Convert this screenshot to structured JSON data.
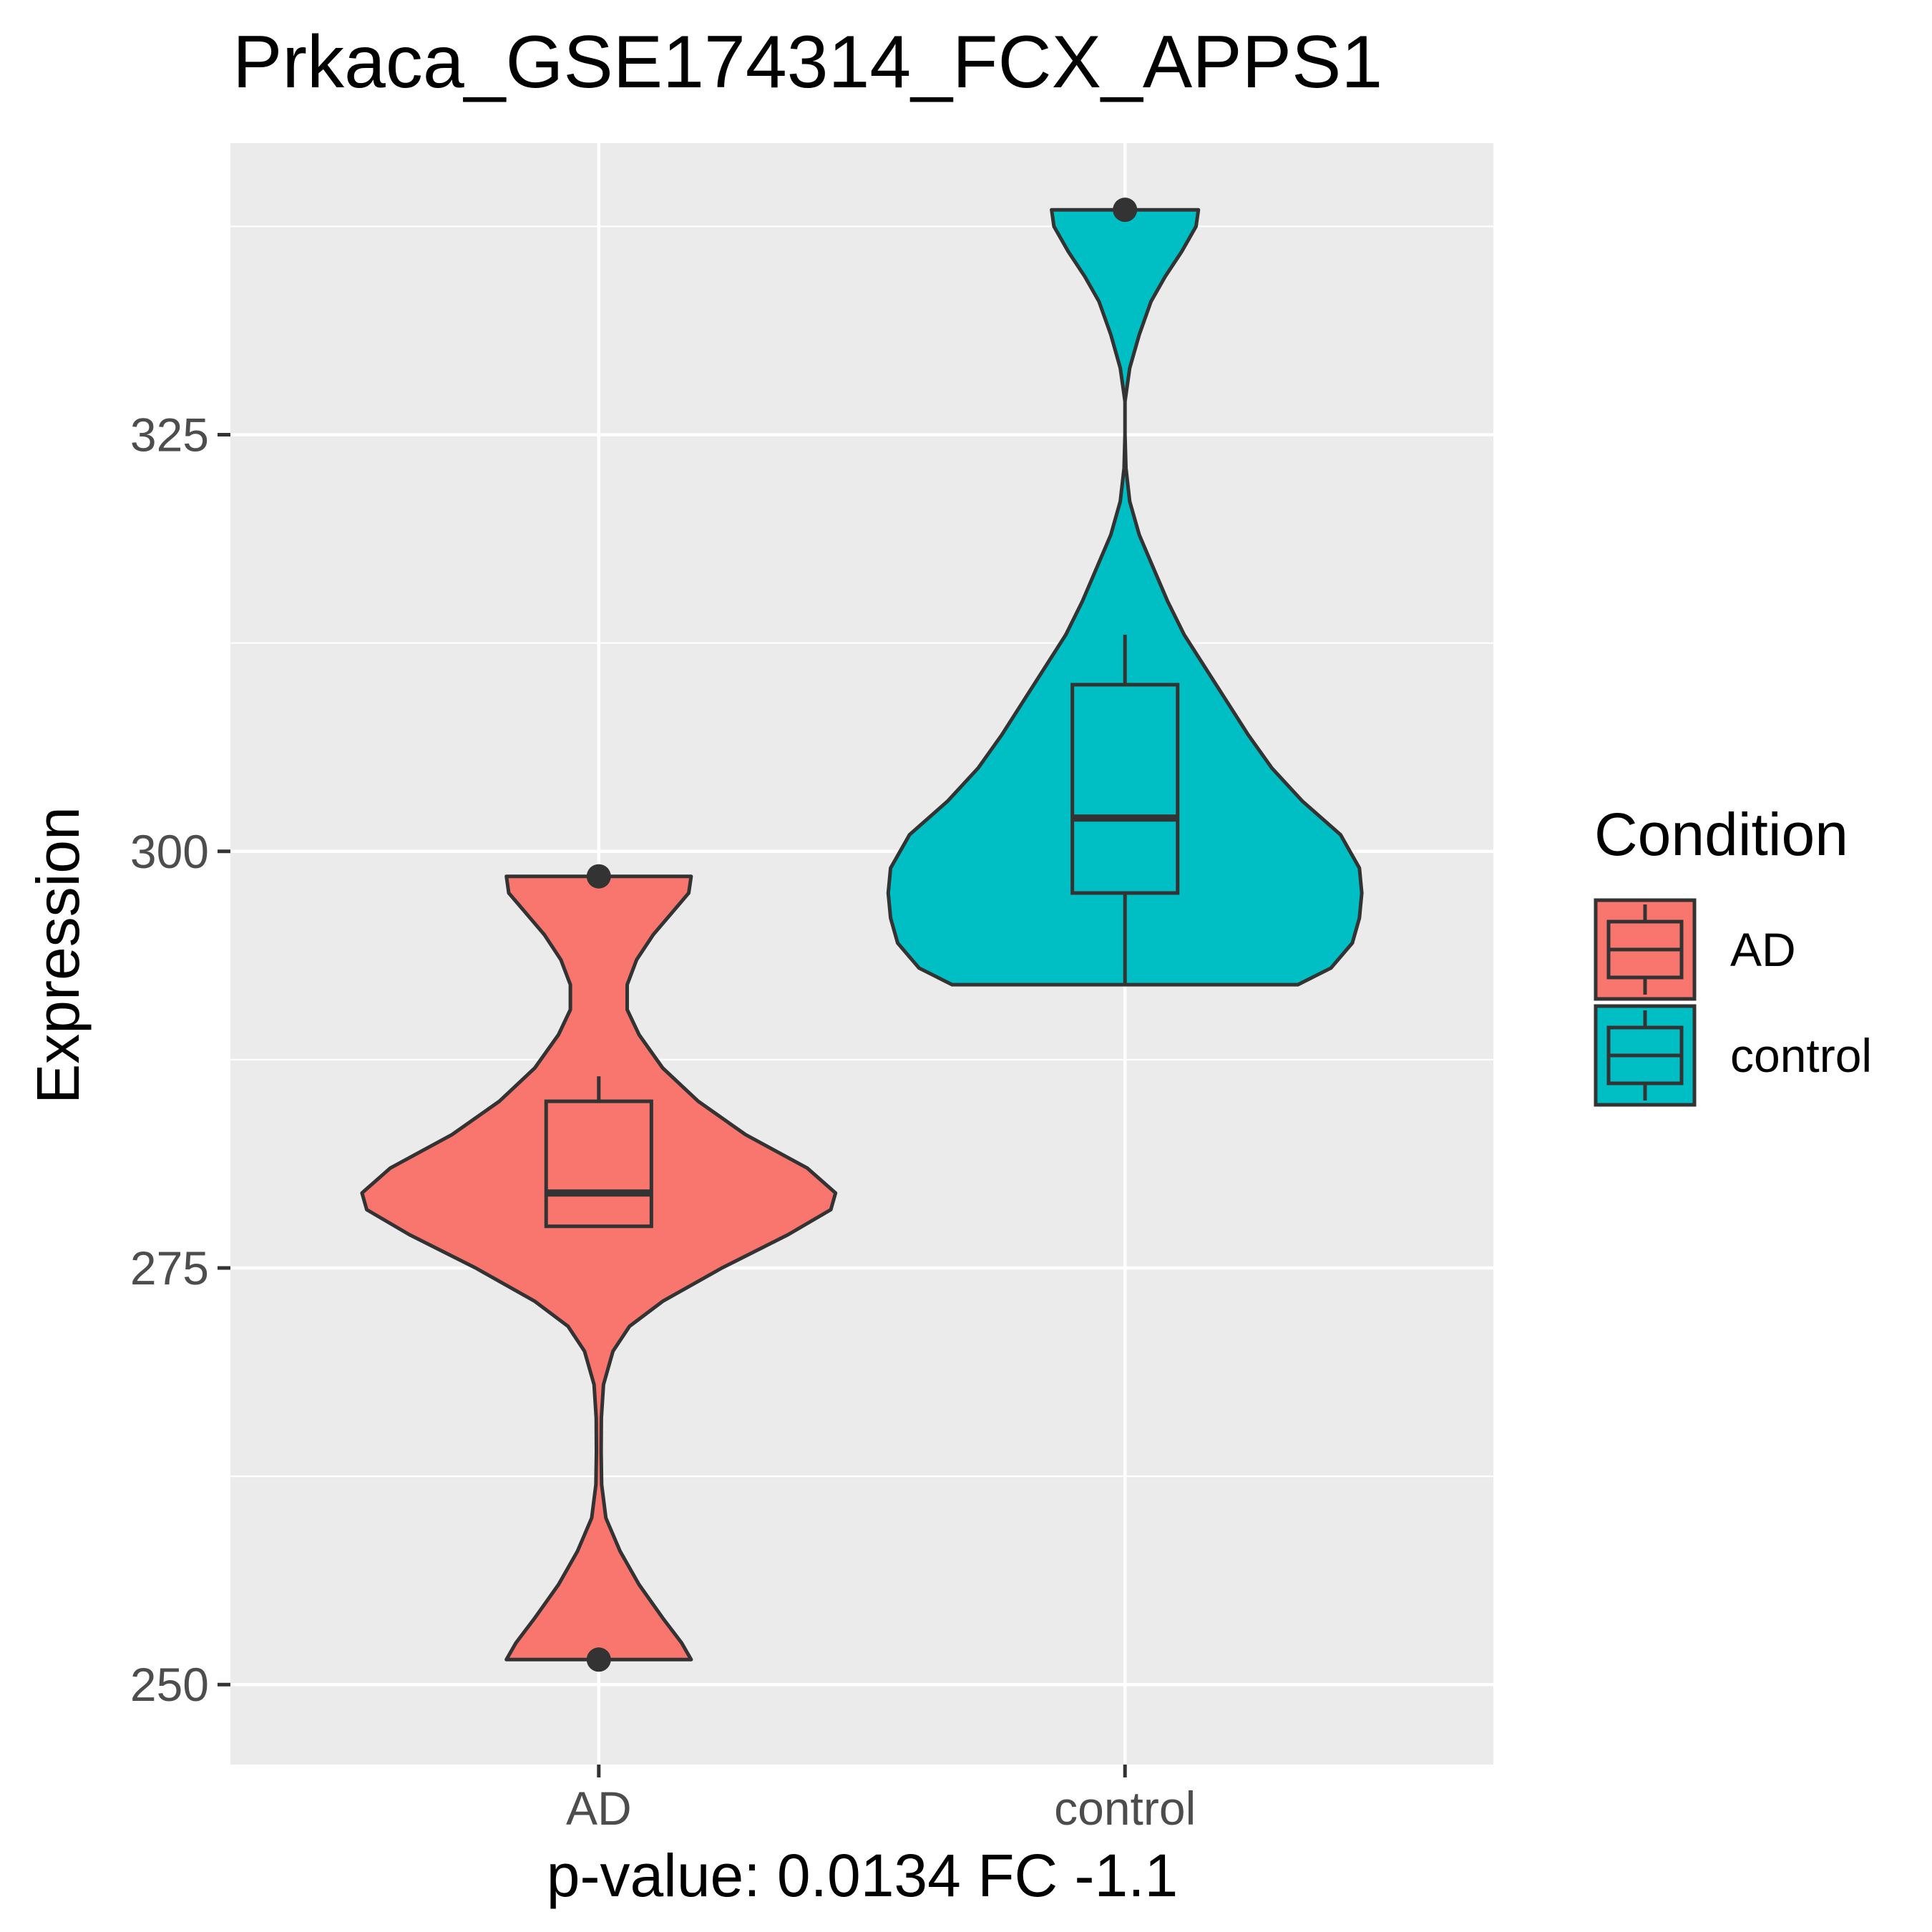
{
  "chart_data": {
    "type": "violin",
    "title": "Prkaca_GSE174314_FCX_APPS1",
    "xlabel": "p-value: 0.0134 FC -1.1",
    "ylabel": "Expression",
    "ylim": [
      245.2,
      342.5
    ],
    "yticks": [
      250,
      275,
      300,
      325
    ],
    "categories": [
      "AD",
      "control"
    ],
    "grid": true,
    "legend": {
      "title": "Condition",
      "position": "right",
      "entries": [
        "AD",
        "control"
      ]
    },
    "colors": {
      "AD": "#F8766D",
      "control": "#00BFC4",
      "panel": "#EBEBEB",
      "grid": "#FFFFFF",
      "outline": "#333333"
    },
    "groups": [
      {
        "name": "AD",
        "box": {
          "whisker_low": 277.5,
          "q1": 277.5,
          "median": 279.5,
          "q3": 285,
          "whisker_high": 286.5
        },
        "outliers": [
          298.5,
          251.5
        ],
        "density": [
          [
            251.5,
            0.39
          ],
          [
            252.5,
            0.35
          ],
          [
            254,
            0.27
          ],
          [
            256,
            0.17
          ],
          [
            258,
            0.09
          ],
          [
            260,
            0.03
          ],
          [
            262,
            0.012
          ],
          [
            264,
            0.01
          ],
          [
            266,
            0.011
          ],
          [
            268,
            0.02
          ],
          [
            270,
            0.06
          ],
          [
            271.5,
            0.13
          ],
          [
            273,
            0.27
          ],
          [
            275,
            0.52
          ],
          [
            277,
            0.8
          ],
          [
            278.5,
            0.98
          ],
          [
            279.5,
            1.0
          ],
          [
            281,
            0.88
          ],
          [
            283,
            0.62
          ],
          [
            285,
            0.42
          ],
          [
            287,
            0.27
          ],
          [
            289,
            0.17
          ],
          [
            290.5,
            0.12
          ],
          [
            292,
            0.12
          ],
          [
            293.5,
            0.16
          ],
          [
            295,
            0.23
          ],
          [
            296.5,
            0.32
          ],
          [
            297.5,
            0.38
          ],
          [
            298.5,
            0.39
          ]
        ]
      },
      {
        "name": "control",
        "box": {
          "whisker_low": 292,
          "q1": 297.5,
          "median": 302,
          "q3": 310,
          "whisker_high": 313
        },
        "outliers": [
          338.5
        ],
        "density": [
          [
            292,
            0.73
          ],
          [
            293,
            0.87
          ],
          [
            294.5,
            0.96
          ],
          [
            296,
            0.99
          ],
          [
            297.5,
            1.0
          ],
          [
            299,
            0.99
          ],
          [
            301,
            0.91
          ],
          [
            303,
            0.75
          ],
          [
            305,
            0.62
          ],
          [
            307,
            0.52
          ],
          [
            309,
            0.43
          ],
          [
            311,
            0.34
          ],
          [
            313,
            0.25
          ],
          [
            315,
            0.18
          ],
          [
            317,
            0.12
          ],
          [
            319,
            0.06
          ],
          [
            321,
            0.02
          ],
          [
            323,
            0.004
          ],
          [
            325,
            0.0
          ],
          [
            327,
            0.0
          ],
          [
            329,
            0.02
          ],
          [
            331,
            0.06
          ],
          [
            333,
            0.11
          ],
          [
            334.5,
            0.17
          ],
          [
            336,
            0.24
          ],
          [
            337.5,
            0.3
          ],
          [
            338.5,
            0.31
          ]
        ]
      }
    ]
  }
}
